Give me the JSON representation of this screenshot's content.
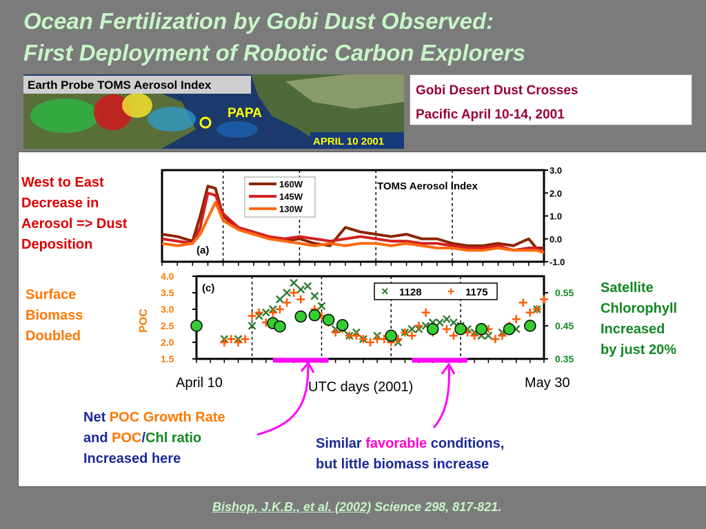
{
  "title": {
    "line1": "Ocean Fertilization by Gobi Dust Observed:",
    "line2": "First Deployment of Robotic Carbon Explorers"
  },
  "map": {
    "header": "Earth  Probe  TOMS  Aerosol  Index",
    "site_label": "PAPA",
    "date_label": "APRIL 10 2001"
  },
  "gobi_box": {
    "line1": "Gobi Desert Dust Crosses",
    "line2": "Pacific April 10-14, 2001"
  },
  "annotations": {
    "west_east": [
      "West to East",
      "Decrease in",
      "Aerosol => Dust",
      "Deposition"
    ],
    "surface": [
      "Surface",
      "Biomass",
      "Doubled"
    ],
    "satellite": [
      "Satellite",
      "Chlorophyll",
      "Increased",
      "by just 20%"
    ],
    "net_poc": {
      "l1a": "Net ",
      "l1b": "POC Growth Rate",
      "l2a": "and ",
      "l2b": "POC",
      "l2c": "/",
      "l2d": "Chl ratio",
      "l3": "Increased here"
    },
    "similar": {
      "l1a": "Similar ",
      "l1b": "favorable",
      "l1c": " conditions,",
      "l2": "but little biomass increase"
    }
  },
  "axis_labels": {
    "start": "April 10",
    "middle": "UTC days (2001)",
    "end": "May 30"
  },
  "citation": {
    "authors": "Bishop, J.K.B., et al.  (2002)",
    "journal": "  Science 298, 817-821."
  },
  "colors": {
    "title": "#c8f5c8",
    "c160w": "#8b2500",
    "c145w": "#d42020",
    "c130w": "#ff6a10",
    "float1128": "#2e7d32",
    "float1175": "#ff5a00",
    "chl": "#33cc33",
    "magenta": "#ff00ff"
  },
  "chart_data": [
    {
      "type": "line",
      "panel_label": "(a)",
      "title": "TOMS Aerosol Index",
      "xlim": [
        100,
        150
      ],
      "ylim": [
        -1.0,
        3.0
      ],
      "y_ticks": [
        "3.0",
        "2.0",
        "1.0",
        "0.0",
        "-1.0"
      ],
      "series": [
        {
          "name": "160W",
          "x": [
            100,
            102,
            104,
            105,
            106,
            107,
            108,
            110,
            112,
            114,
            116,
            118,
            120,
            122,
            124,
            126,
            128,
            130,
            132,
            134,
            136,
            138,
            140,
            142,
            144,
            146,
            148,
            149,
            150
          ],
          "values": [
            0.2,
            0.1,
            -0.1,
            1.0,
            2.3,
            2.2,
            1.0,
            0.4,
            0.2,
            0.1,
            -0.1,
            0.0,
            -0.2,
            -0.3,
            0.5,
            0.3,
            0.2,
            0.1,
            0.2,
            0.0,
            0.0,
            -0.2,
            -0.3,
            -0.3,
            -0.2,
            -0.3,
            0.0,
            -0.4,
            -0.4
          ]
        },
        {
          "name": "145W",
          "x": [
            100,
            102,
            104,
            105,
            106,
            107,
            108,
            110,
            112,
            114,
            116,
            118,
            120,
            122,
            124,
            126,
            128,
            130,
            132,
            134,
            136,
            138,
            140,
            142,
            144,
            146,
            148,
            149,
            150
          ],
          "values": [
            0.0,
            -0.1,
            -0.2,
            0.5,
            2.0,
            1.9,
            1.1,
            0.5,
            0.3,
            0.1,
            0.0,
            0.1,
            0.0,
            -0.1,
            0.0,
            0.1,
            0.0,
            -0.1,
            -0.1,
            -0.2,
            -0.2,
            -0.3,
            -0.4,
            -0.4,
            -0.3,
            -0.5,
            -0.4,
            -0.4,
            -0.6
          ]
        },
        {
          "name": "130W",
          "x": [
            100,
            102,
            104,
            105,
            106,
            107,
            108,
            110,
            112,
            114,
            116,
            118,
            120,
            122,
            124,
            126,
            128,
            130,
            132,
            134,
            136,
            138,
            140,
            142,
            144,
            146,
            148,
            149,
            150
          ],
          "values": [
            -0.2,
            -0.3,
            -0.2,
            0.2,
            0.9,
            1.6,
            0.8,
            0.4,
            0.2,
            0.0,
            -0.1,
            -0.2,
            -0.3,
            -0.2,
            -0.3,
            -0.2,
            -0.2,
            -0.3,
            -0.2,
            -0.3,
            -0.4,
            -0.4,
            -0.5,
            -0.5,
            -0.4,
            -0.5,
            -0.5,
            -0.5,
            -0.6
          ]
        }
      ]
    },
    {
      "type": "scatter",
      "panel_label": "(c)",
      "ylabel": "POC",
      "xlim": [
        100,
        150
      ],
      "ylim": [
        1.5,
        4.0
      ],
      "y_ticks": [
        "4.0",
        "3.5",
        "3.0",
        "2.5",
        "2.0",
        "1.5"
      ],
      "y2lim": [
        0.35,
        0.6
      ],
      "y2_ticks": [
        "0.55",
        "0.45",
        "0.35"
      ],
      "series": [
        {
          "name": "1128",
          "marker": "x",
          "x": [
            104,
            106,
            108,
            109,
            110,
            111,
            112,
            113,
            114,
            115,
            116,
            117,
            118,
            119,
            120,
            121,
            122,
            123,
            124,
            126,
            128,
            129,
            130,
            131,
            132,
            133,
            134,
            135,
            136,
            137,
            138,
            139,
            140,
            141,
            142,
            144,
            146,
            148,
            149
          ],
          "values": [
            2.1,
            2.1,
            2.5,
            2.8,
            2.9,
            3.0,
            3.3,
            3.5,
            3.8,
            3.6,
            3.7,
            3.4,
            3.1,
            2.7,
            2.4,
            2.4,
            2.2,
            2.3,
            2.1,
            2.2,
            2.1,
            2.0,
            2.3,
            2.4,
            2.4,
            2.5,
            2.6,
            2.6,
            2.7,
            2.6,
            2.5,
            2.4,
            2.3,
            2.2,
            2.2,
            2.3,
            2.4,
            2.5,
            3.0
          ]
        },
        {
          "name": "1175",
          "marker": "+",
          "x": [
            104,
            105,
            106,
            107,
            108,
            109,
            110,
            111,
            112,
            113,
            114,
            115,
            117,
            118,
            119,
            120,
            121,
            122,
            123,
            124,
            125,
            126,
            127,
            128,
            129,
            130,
            131,
            132,
            133,
            134,
            136,
            137,
            138,
            139,
            140,
            141,
            142,
            143,
            144,
            145,
            146,
            147,
            148,
            149,
            150
          ],
          "values": [
            2.0,
            2.1,
            2.0,
            2.1,
            2.8,
            2.9,
            2.6,
            2.9,
            3.0,
            3.2,
            3.5,
            3.3,
            3.0,
            2.8,
            2.6,
            2.3,
            2.4,
            2.2,
            2.2,
            2.1,
            2.0,
            2.1,
            2.1,
            2.0,
            2.1,
            2.3,
            2.2,
            2.5,
            2.9,
            2.3,
            2.4,
            2.2,
            2.4,
            2.3,
            2.2,
            2.3,
            2.4,
            2.1,
            2.2,
            2.5,
            2.7,
            3.2,
            2.9,
            3.0,
            3.3
          ]
        },
        {
          "name": "Satellite Chlorophyll",
          "marker": "circle",
          "axis": "right",
          "x": [
            100,
            111,
            112,
            115,
            117,
            119,
            121,
            128,
            134,
            138,
            141,
            145,
            148
          ],
          "values": [
            0.45,
            0.458,
            0.448,
            0.478,
            0.482,
            0.468,
            0.452,
            0.42,
            0.44,
            0.44,
            0.44,
            0.44,
            0.45
          ]
        }
      ],
      "highlight_periods": [
        [
          111,
          119
        ],
        [
          131,
          139
        ]
      ]
    }
  ]
}
